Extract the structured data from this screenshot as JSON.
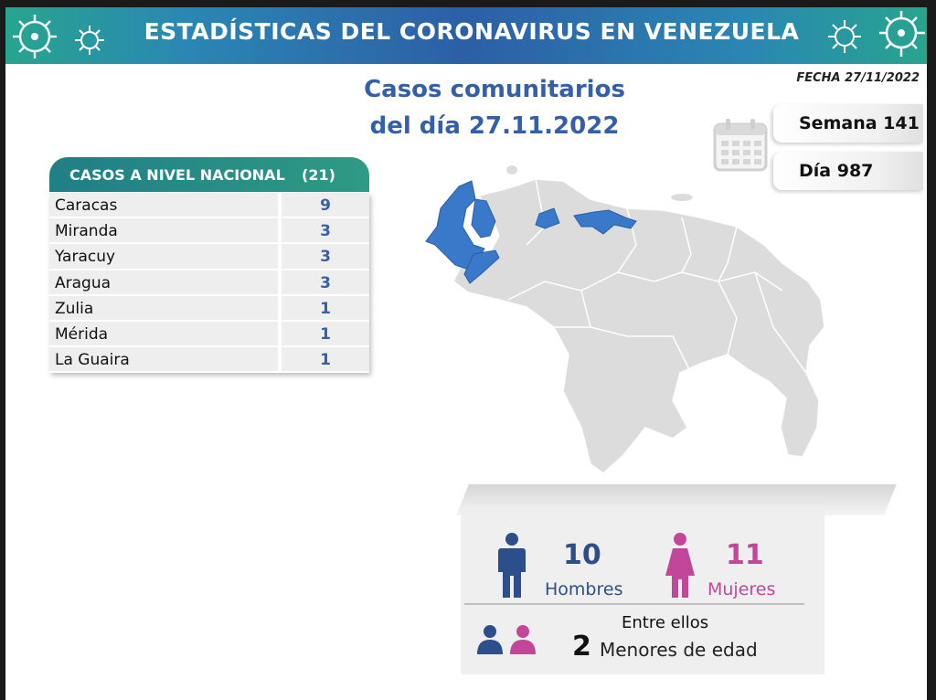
{
  "banner": {
    "title": "ESTADÍSTICAS DEL CORONAVIRUS EN VENEZUELA"
  },
  "headline": {
    "line1": "Casos comunitarios",
    "line2": "del día 27.11.2022"
  },
  "fecha": "FECHA 27/11/2022",
  "semana": "Semana 141",
  "dia": "Día 987",
  "table": {
    "header_label": "CASOS A NIVEL NACIONAL",
    "header_count": "(21)",
    "rows": [
      {
        "name": "Caracas",
        "value": "9"
      },
      {
        "name": "Miranda",
        "value": "3"
      },
      {
        "name": "Yaracuy",
        "value": "3"
      },
      {
        "name": "Aragua",
        "value": "3"
      },
      {
        "name": "Zulia",
        "value": "1"
      },
      {
        "name": "Mérida",
        "value": "1"
      },
      {
        "name": "La Guaira",
        "value": "1"
      }
    ]
  },
  "gender": {
    "men_count": "10",
    "men_label": "Hombres",
    "women_count": "11",
    "women_label": "Mujeres",
    "among": "Entre ellos",
    "minors_count": "2",
    "minors_label": "Menores de edad"
  },
  "colors": {
    "men": "#2c4e8a",
    "women": "#c2479a",
    "highlight": "#3a78c9",
    "map_gray": "#dcdcdc"
  }
}
